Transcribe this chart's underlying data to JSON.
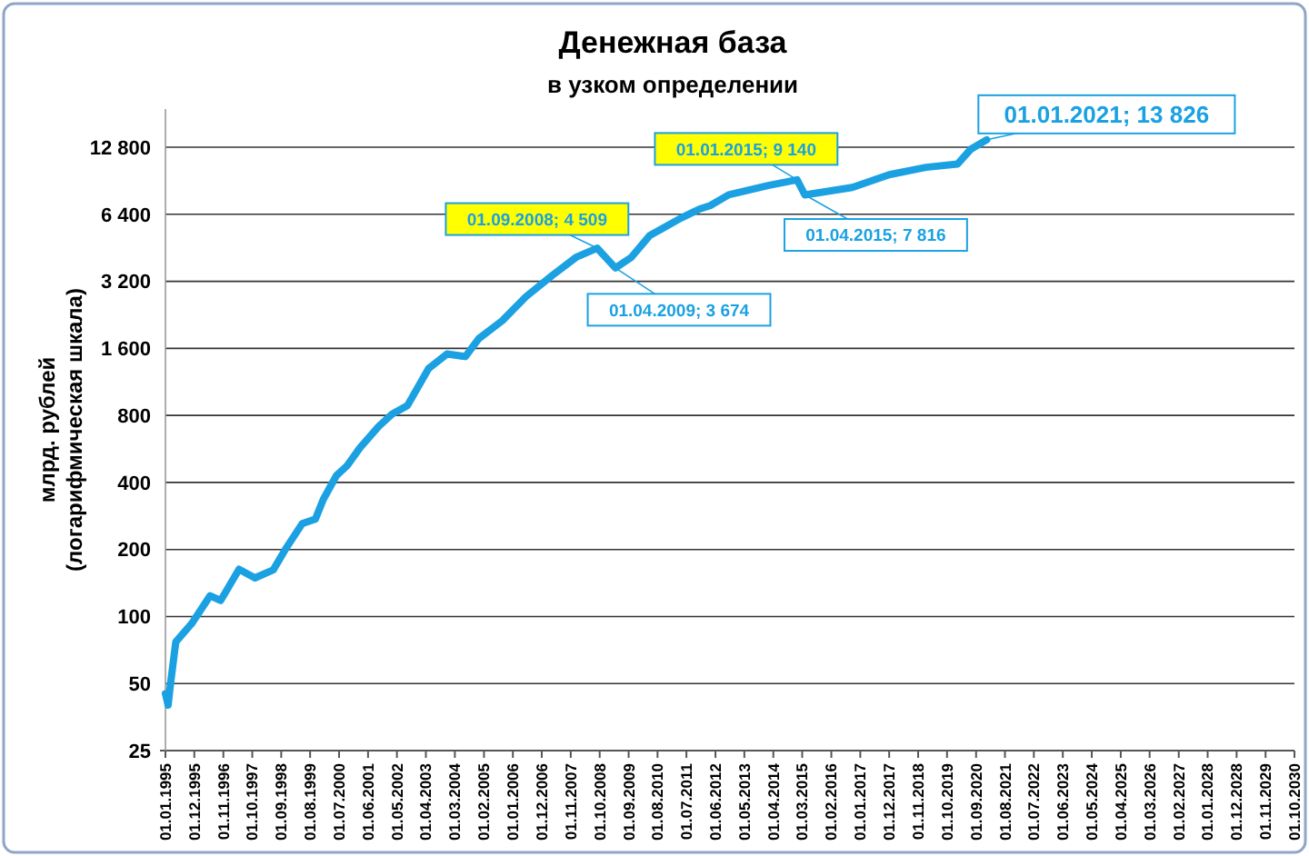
{
  "chart_data": {
    "type": "line",
    "title": "Денежная база",
    "subtitle": "в узком определении",
    "ylabel": "млрд. рублей\n(логарифмическая шкала)",
    "log": "y",
    "grid": "y",
    "marker": "none",
    "line_style": "solid",
    "ylim": [
      25,
      19000
    ],
    "yticks": [
      25,
      50,
      100,
      200,
      400,
      800,
      {
        "value": 1600,
        "label": "1 600"
      },
      {
        "value": 3200,
        "label": "3 200"
      },
      {
        "value": 6400,
        "label": "6 400"
      },
      {
        "value": 12800,
        "label": "12 800"
      }
    ],
    "xlim": [
      "1995-01",
      "2030-10"
    ],
    "xticks": [
      {
        "value": "1995-01",
        "label": "01.01.1995"
      },
      {
        "value": "1995-12",
        "label": "01.12.1995"
      },
      {
        "value": "1996-11",
        "label": "01.11.1996"
      },
      {
        "value": "1997-10",
        "label": "01.10.1997"
      },
      {
        "value": "1998-09",
        "label": "01.09.1998"
      },
      {
        "value": "1999-08",
        "label": "01.08.1999"
      },
      {
        "value": "2000-07",
        "label": "01.07.2000"
      },
      {
        "value": "2001-06",
        "label": "01.06.2001"
      },
      {
        "value": "2002-05",
        "label": "01.05.2002"
      },
      {
        "value": "2003-04",
        "label": "01.04.2003"
      },
      {
        "value": "2004-03",
        "label": "01.03.2004"
      },
      {
        "value": "2005-02",
        "label": "01.02.2005"
      },
      {
        "value": "2006-01",
        "label": "01.01.2006"
      },
      {
        "value": "2006-12",
        "label": "01.12.2006"
      },
      {
        "value": "2007-11",
        "label": "01.11.2007"
      },
      {
        "value": "2008-10",
        "label": "01.10.2008"
      },
      {
        "value": "2009-09",
        "label": "01.09.2009"
      },
      {
        "value": "2010-08",
        "label": "01.08.2010"
      },
      {
        "value": "2011-07",
        "label": "01.07.2011"
      },
      {
        "value": "2012-06",
        "label": "01.06.2012"
      },
      {
        "value": "2013-05",
        "label": "01.05.2013"
      },
      {
        "value": "2014-04",
        "label": "01.04.2014"
      },
      {
        "value": "2015-03",
        "label": "01.03.2015"
      },
      {
        "value": "2016-02",
        "label": "01.02.2016"
      },
      {
        "value": "2017-01",
        "label": "01.01.2017"
      },
      {
        "value": "2017-12",
        "label": "01.12.2017"
      },
      {
        "value": "2018-11",
        "label": "01.11.2018"
      },
      {
        "value": "2019-10",
        "label": "01.10.2019"
      },
      {
        "value": "2020-09",
        "label": "01.09.2020"
      },
      {
        "value": "2021-08",
        "label": "01.08.2021"
      },
      {
        "value": "2022-07",
        "label": "01.07.2022"
      },
      {
        "value": "2023-06",
        "label": "01.06.2023"
      },
      {
        "value": "2024-05",
        "label": "01.05.2024"
      },
      {
        "value": "2025-04",
        "label": "01.04.2025"
      },
      {
        "value": "2026-03",
        "label": "01.03.2026"
      },
      {
        "value": "2027-02",
        "label": "01.02.2027"
      },
      {
        "value": "2028-01",
        "label": "01.01.2028"
      },
      {
        "value": "2028-12",
        "label": "01.12.2028"
      },
      {
        "value": "2029-11",
        "label": "01.11.2029"
      },
      {
        "value": "2030-10",
        "label": "01.10.2030"
      }
    ],
    "x": [
      "1995-01",
      "1995-02",
      "1995-03",
      "1995-05",
      "1995-11",
      "1996-06",
      "1996-10",
      "1997-05",
      "1997-11",
      "1998-06",
      "1998-11",
      "1999-05",
      "1999-10",
      "2000-01",
      "2000-06",
      "2000-10",
      "2001-03",
      "2001-10",
      "2002-03",
      "2002-09",
      "2003-05",
      "2003-12",
      "2004-07",
      "2004-12",
      "2005-09",
      "2006-06",
      "2007-04",
      "2008-01",
      "2008-09",
      "2009-04",
      "2009-10",
      "2010-05",
      "2011-05",
      "2011-12",
      "2012-04",
      "2012-11",
      "2014-02",
      "2015-01",
      "2015-04",
      "2016-10",
      "2017-12",
      "2019-02",
      "2020-02",
      "2020-07",
      "2021-01"
    ],
    "series": [
      {
        "color": "#1ba1e2",
        "values": [
          45,
          40,
          50,
          77,
          93,
          124,
          118,
          163,
          149,
          162,
          204,
          261,
          274,
          336,
          430,
          475,
          573,
          713,
          808,
          887,
          1297,
          1510,
          1470,
          1767,
          2130,
          2730,
          3400,
          4100,
          4509,
          3674,
          4100,
          5130,
          6160,
          6760,
          7000,
          7830,
          8620,
          9140,
          7816,
          8450,
          9640,
          10400,
          10770,
          12540,
          13826
        ]
      }
    ],
    "annotations": [
      {
        "text": "01.09.2008; 4 509",
        "x": "2008-09",
        "y": 4509
      },
      {
        "text": "01.04.2009; 3 674",
        "x": "2009-04",
        "y": 3674
      },
      {
        "text": "01.01.2015; 9 140",
        "x": "2015-01",
        "y": 9140
      },
      {
        "text": "01.04.2015; 7 816",
        "x": "2015-04",
        "y": 7816
      },
      {
        "text": "01.01.2021; 13 826",
        "x": "2021-01",
        "y": 13826
      }
    ]
  }
}
